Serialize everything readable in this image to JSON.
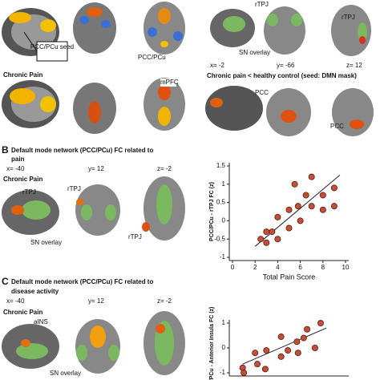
{
  "panel_a": {
    "seed_label": "PCC/PCu seed",
    "group_label": "Chronic Pain",
    "labels": [
      "PCC/PCu",
      "mPFC"
    ],
    "right_labels": [
      "rTPJ",
      "rTPJ",
      "SN overlay"
    ],
    "coords": [
      "x= -2",
      "y= -66",
      "z= 12"
    ],
    "contrast_title": "Chronic pain < healthy control (seed: DMN mask)",
    "contrast_labels": [
      "PCC",
      "PCC"
    ]
  },
  "panel_b": {
    "letter": "B",
    "title": [
      "Default mode network (PCC/PCu) FC related to",
      "pain"
    ],
    "coords": [
      "x= -40",
      "y= 12",
      "z= -2"
    ],
    "group_label": "Chronic Pain",
    "labels": [
      "rTPJ",
      "rTPJ",
      "SN overlay"
    ]
  },
  "panel_c": {
    "letter": "C",
    "title": [
      "Default mode network (PCC/PCu) FC related to",
      "disease activity"
    ],
    "coords": [
      "x= -40",
      "y= 12",
      "z= -2"
    ],
    "group_label": "Chronic Pain",
    "labels": [
      "aINS",
      "SN overlay"
    ]
  },
  "chart_data": [
    {
      "type": "scatter",
      "x_label": "Total Pain Score",
      "y_label": "PCC/PCu - rTPJ FC (z)",
      "color": "#c0503a",
      "x": [
        7,
        5.5,
        8,
        6.5,
        5.8,
        5,
        7,
        4,
        6,
        8,
        3.5,
        5,
        3,
        4,
        3,
        2.5,
        9,
        9
      ],
      "values": [
        1.2,
        1.0,
        0.7,
        0.7,
        0.4,
        0.3,
        0.4,
        0.1,
        0,
        0.3,
        -0.3,
        -0.2,
        -0.3,
        -0.5,
        -0.6,
        -0.5,
        0.4,
        0.9
      ],
      "trendline": {
        "x": [
          2,
          9.5
        ],
        "y": [
          -0.7,
          1.25
        ]
      },
      "xlim": [
        0,
        10
      ],
      "xticks": [
        0,
        2,
        4,
        6,
        8,
        10
      ],
      "ylim": [
        -1,
        1.5
      ],
      "yticks": [
        -1,
        -0.5,
        0,
        0.5,
        1,
        1.5
      ]
    },
    {
      "type": "scatter",
      "y_label": "CC/PCu - Anterior Insula FC (z)",
      "color": "#c0503a",
      "x": [
        7.8,
        6.6,
        6.3,
        5.7,
        7.3,
        4.3,
        4.9,
        5.8,
        3,
        4.3,
        2,
        0.9,
        2.2,
        2.9,
        1
      ],
      "values": [
        1.0,
        0.75,
        0.4,
        0.25,
        0,
        0.45,
        -0.1,
        -0.2,
        -0.1,
        -0.35,
        -0.2,
        -0.8,
        -0.65,
        -0.85,
        -1
      ],
      "trendline": {
        "x": [
          0.9,
          8.3
        ],
        "y": [
          -0.65,
          0.8
        ]
      },
      "xlim": [
        0,
        10
      ],
      "ylim": [
        -1,
        1
      ],
      "yticks": [
        -1,
        0,
        1
      ]
    }
  ]
}
